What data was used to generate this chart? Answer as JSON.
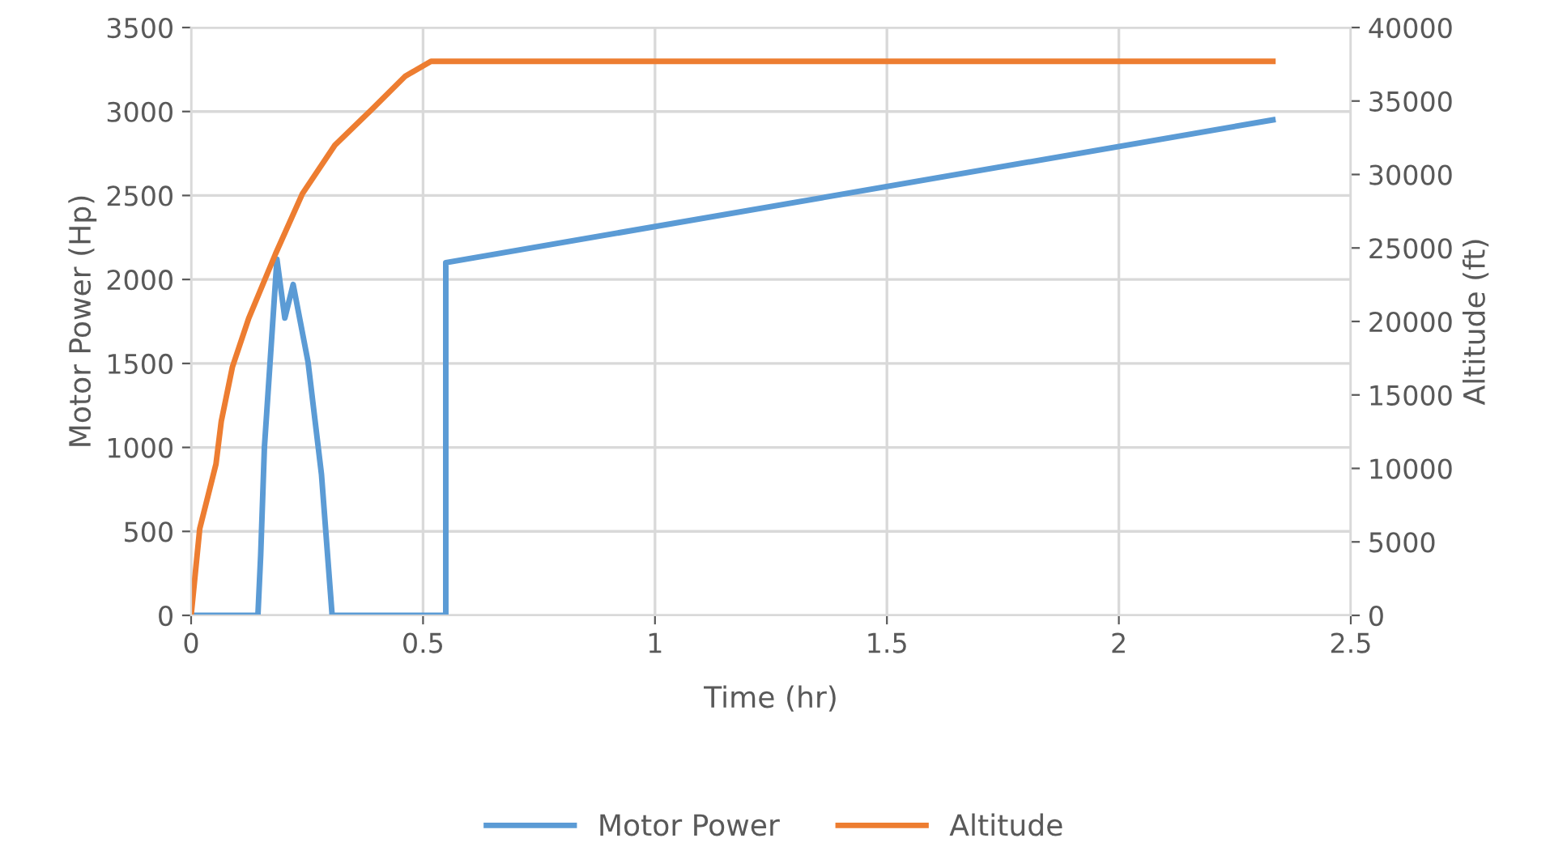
{
  "chart_data": {
    "type": "line",
    "xlabel": "Time (hr)",
    "ylabel": "Motor Power (Hp)",
    "y2label": "Altitude (ft)",
    "xlim": [
      0,
      2.5
    ],
    "xticks": [
      0,
      0.5,
      1,
      1.5,
      2,
      2.5
    ],
    "ylim": [
      0,
      3500
    ],
    "yticks": [
      0,
      500,
      1000,
      1500,
      2000,
      2500,
      3000,
      3500
    ],
    "y2lim": [
      0,
      40000
    ],
    "y2ticks": [
      0,
      5000,
      10000,
      15000,
      20000,
      25000,
      30000,
      35000,
      40000
    ],
    "grid": true,
    "legend": "bottom",
    "marker": "none",
    "line_style": "solid",
    "series": [
      {
        "name": "Motor Power",
        "color": "#5b9bd5",
        "x": [
          0,
          0.144,
          0.15,
          0.158,
          0.185,
          0.202,
          0.22,
          0.252,
          0.281,
          0.304,
          0.549,
          0.549,
          2.332
        ],
        "values": [
          0,
          0,
          360,
          1000,
          2120,
          1770,
          1970,
          1510,
          840,
          0,
          0,
          2100,
          2950
        ]
      },
      {
        "name": "Altitude",
        "color": "#ed7d31",
        "axis": "y2",
        "x": [
          0,
          0.0186,
          0.0536,
          0.065,
          0.089,
          0.124,
          0.182,
          0.24,
          0.31,
          0.392,
          0.462,
          0.517,
          2.332
        ],
        "values": [
          0,
          5900,
          10300,
          13200,
          16900,
          20200,
          24600,
          28700,
          32000,
          34500,
          36700,
          37700,
          37700
        ]
      }
    ]
  }
}
